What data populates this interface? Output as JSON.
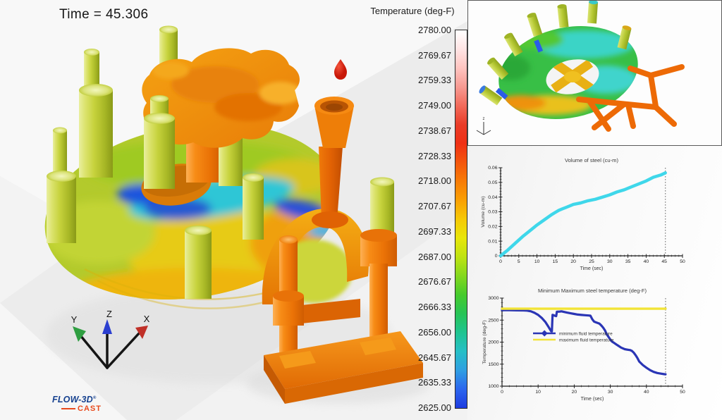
{
  "viewport": {
    "time_label": "Time = 45.306"
  },
  "colorbar": {
    "title": "Temperature (deg-F)",
    "labels": [
      "2780.00",
      "2769.67",
      "2759.33",
      "2749.00",
      "2738.67",
      "2728.33",
      "2718.00",
      "2707.67",
      "2697.33",
      "2687.00",
      "2676.67",
      "2666.33",
      "2656.00",
      "2645.67",
      "2635.33",
      "2625.00"
    ],
    "gradient_top_to_bottom": [
      "#ffffff",
      "#ffe4e4",
      "#ffc4c0",
      "#f79a92",
      "#f26a5a",
      "#ea3c28",
      "#ef3014",
      "#f4560c",
      "#f87c06",
      "#faa004",
      "#f6c906",
      "#e8e60a",
      "#bfe312",
      "#84d81e",
      "#46cb2c",
      "#27c456",
      "#1fc490",
      "#26bfc6",
      "#2f9fe2",
      "#2c66ee",
      "#1e3ce0"
    ]
  },
  "triad": {
    "x": "X",
    "y": "Y",
    "z": "Z",
    "x_color": "#c03028",
    "y_color": "#2f9e41",
    "z_color": "#2b3fd0"
  },
  "inset": {
    "triad_z": "z"
  },
  "logo": {
    "name": "FLOW-3D",
    "reg": "®",
    "sub": "CAST"
  },
  "chart_data": [
    {
      "type": "line",
      "title": "Volume of steel (cu-m)",
      "xlabel": "Time (sec)",
      "ylabel": "Volume  (cu-m)",
      "xlim": [
        0,
        50
      ],
      "ylim": [
        0,
        0.06
      ],
      "xticks": [
        0,
        5,
        10,
        15,
        20,
        25,
        30,
        35,
        40,
        45,
        50
      ],
      "xtick_labels": [
        "0",
        "5",
        "10",
        "15",
        "20",
        "25",
        "30",
        "35",
        "40",
        "45",
        "50"
      ],
      "yticks": [
        0,
        0.01,
        0.02,
        0.03,
        0.04,
        0.05,
        0.06
      ],
      "ytick_labels": [
        "0",
        "0.01",
        "0.02",
        "0.03",
        "0.04",
        "0.05",
        "0.06"
      ],
      "minor_x_step": 1,
      "minor_y_step": 0.002,
      "grid": false,
      "current_time_marker": 45.306,
      "series": [
        {
          "name": "volume of steel",
          "color": "#3fd7ea",
          "width": 4.5,
          "x": [
            0,
            2,
            4,
            6,
            8,
            10,
            12,
            14,
            15,
            16,
            17,
            18,
            20,
            22,
            24,
            26,
            28,
            30,
            32,
            34,
            36,
            38,
            40,
            42,
            44,
            45.3
          ],
          "y": [
            0,
            0.004,
            0.0085,
            0.013,
            0.017,
            0.021,
            0.0245,
            0.028,
            0.0295,
            0.031,
            0.032,
            0.033,
            0.035,
            0.036,
            0.0375,
            0.0385,
            0.04,
            0.0415,
            0.0435,
            0.045,
            0.047,
            0.049,
            0.051,
            0.0535,
            0.055,
            0.0565
          ]
        }
      ]
    },
    {
      "type": "line",
      "title": "Minimum Maximum steel temperature (deg-F)",
      "xlabel": "Time (sec)",
      "ylabel": "Temperature (deg-F)",
      "xlim": [
        0,
        50
      ],
      "ylim": [
        1000,
        3000
      ],
      "xticks": [
        0,
        10,
        20,
        30,
        40,
        50
      ],
      "xtick_labels": [
        "0",
        "10",
        "20",
        "30",
        "40",
        "50"
      ],
      "yticks": [
        1000,
        1500,
        2000,
        2500,
        3000
      ],
      "ytick_labels": [
        "1000",
        "1500",
        "2000",
        "2500",
        "3000"
      ],
      "minor_x_step": 2,
      "minor_y_step": 100,
      "grid": false,
      "current_time_marker": 45.306,
      "legend": {
        "dx": 44,
        "dy": 50
      },
      "series": [
        {
          "name": "minimum fluid temperature",
          "color": "#2a35b5",
          "width": 3.2,
          "x": [
            0,
            2,
            4,
            6,
            7,
            8,
            9,
            10,
            11,
            12,
            13,
            13.6,
            13.8,
            14,
            14.6,
            15,
            15.2,
            16,
            16.5,
            17,
            18,
            19,
            20,
            21,
            22,
            23,
            24,
            24.5,
            25,
            25.5,
            26,
            27,
            27.5,
            28,
            28.5,
            29,
            30,
            30.5,
            31,
            32,
            33,
            34,
            35,
            35.5,
            36,
            36.5,
            37,
            37.5,
            38,
            39,
            39.5,
            40,
            41,
            42,
            43,
            44,
            45,
            45.3
          ],
          "y": [
            2725,
            2725,
            2722,
            2720,
            2715,
            2700,
            2665,
            2620,
            2550,
            2460,
            2330,
            2250,
            2245,
            2620,
            2600,
            2590,
            2690,
            2695,
            2700,
            2690,
            2670,
            2655,
            2640,
            2625,
            2618,
            2612,
            2605,
            2600,
            2520,
            2465,
            2450,
            2420,
            2380,
            2330,
            2270,
            2180,
            2060,
            2010,
            1985,
            1930,
            1875,
            1840,
            1825,
            1820,
            1800,
            1760,
            1705,
            1640,
            1560,
            1480,
            1450,
            1420,
            1365,
            1325,
            1300,
            1285,
            1272,
            1270
          ]
        },
        {
          "name": "maximum fluid temperature",
          "color": "#f2e437",
          "width": 3.4,
          "x": [
            0,
            45.3
          ],
          "y": [
            2758,
            2758
          ]
        }
      ]
    }
  ]
}
